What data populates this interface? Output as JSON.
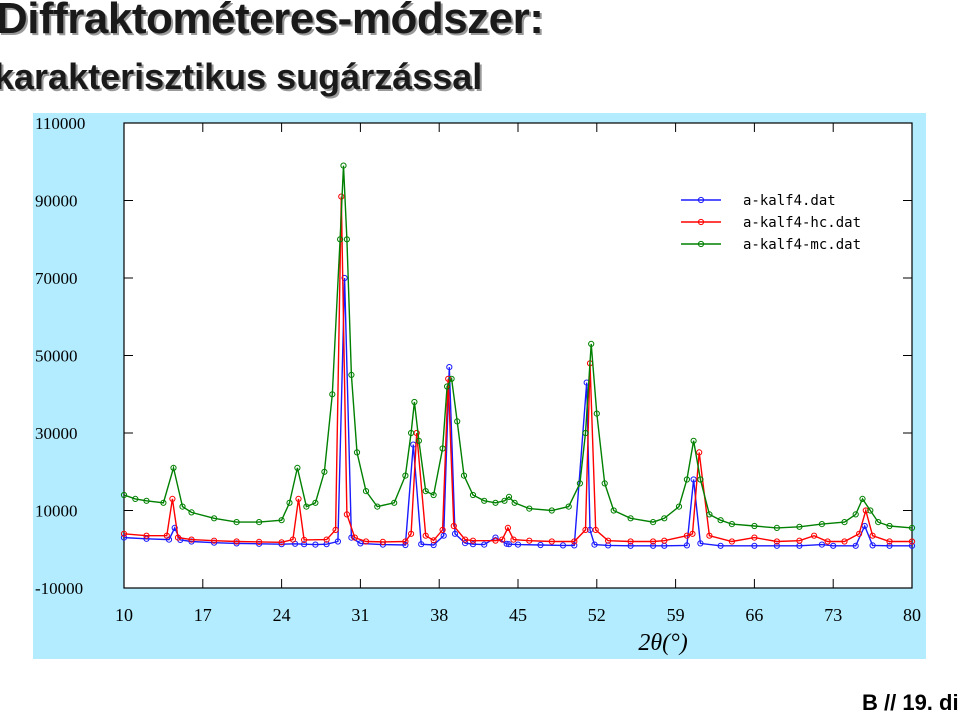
{
  "slide": {
    "title": "Diffraktométeres-módszer:",
    "subtitle": "karakterisztikus sugárzással",
    "footer": "B // 19. di"
  },
  "chart_data": {
    "type": "line",
    "title": "",
    "xlabel": "2θ(°)",
    "ylabel": "",
    "xlim": [
      10,
      80
    ],
    "ylim": [
      -10000,
      110000
    ],
    "xticks": [
      10,
      17,
      24,
      31,
      38,
      45,
      52,
      59,
      66,
      73,
      80
    ],
    "xtick_labels": [
      "10",
      "17",
      "24",
      "31",
      "38",
      "45",
      "52",
      "59",
      "66",
      "73",
      "80"
    ],
    "yticks": [
      -10000,
      10000,
      30000,
      50000,
      70000,
      90000,
      110000
    ],
    "ytick_labels": [
      "-10000",
      "10000",
      "30000",
      "50000",
      "70000",
      "90000",
      "110000"
    ],
    "grid": false,
    "legend_position": "top-right",
    "marker": "circle",
    "series": [
      {
        "name": "a-kalf4.dat",
        "color": "#1a1aff",
        "x": [
          10,
          12,
          14,
          14.5,
          15,
          16,
          18,
          20,
          22,
          24,
          25.2,
          26,
          27,
          28,
          29,
          29.6,
          30.2,
          31,
          33,
          35,
          35.7,
          36.4,
          37.5,
          38.4,
          38.9,
          39.4,
          40.3,
          41,
          42,
          43,
          44,
          44.2,
          45,
          47,
          49,
          50,
          51.1,
          51.4,
          51.8,
          53,
          55,
          57,
          58,
          60,
          60.6,
          61.2,
          63,
          66,
          68,
          70,
          72,
          73,
          75,
          75.8,
          76.5,
          78,
          80
        ],
        "y": [
          3000,
          2700,
          2500,
          5500,
          2400,
          2000,
          1700,
          1500,
          1400,
          1300,
          1400,
          1300,
          1200,
          1300,
          2000,
          70000,
          3000,
          1500,
          1200,
          1100,
          27000,
          1300,
          1100,
          3500,
          47000,
          4000,
          1600,
          1300,
          1200,
          3000,
          1400,
          1300,
          1200,
          1100,
          1000,
          1000,
          43000,
          5000,
          1200,
          1000,
          900,
          900,
          900,
          1000,
          18000,
          1500,
          900,
          900,
          900,
          900,
          1200,
          900,
          900,
          6000,
          1000,
          900,
          900
        ]
      },
      {
        "name": "a-kalf4-hc.dat",
        "color": "#ff0000",
        "x": [
          10,
          12,
          13.8,
          14.3,
          14.8,
          16,
          18,
          20,
          22,
          24,
          25,
          25.5,
          26,
          28,
          28.8,
          29.3,
          29.8,
          30.5,
          31.5,
          33,
          35,
          35.5,
          36,
          36.8,
          37.5,
          38.3,
          38.8,
          39.3,
          40.3,
          41,
          43,
          43.6,
          44.1,
          44.6,
          46,
          48,
          50,
          51,
          51.4,
          51.9,
          53,
          55,
          57,
          58,
          60,
          60.5,
          61.1,
          62,
          64,
          66,
          68,
          70,
          71.3,
          72.5,
          74,
          75.3,
          75.9,
          76.5,
          78,
          80
        ],
        "y": [
          4000,
          3500,
          3500,
          13000,
          3000,
          2500,
          2200,
          2000,
          1900,
          1800,
          2500,
          13000,
          2400,
          2500,
          5000,
          91000,
          9000,
          3000,
          2000,
          1900,
          2000,
          4000,
          30000,
          3500,
          2300,
          5000,
          44000,
          6000,
          2500,
          2200,
          2200,
          2500,
          5500,
          2500,
          2200,
          2000,
          2000,
          5000,
          48000,
          5000,
          2200,
          2000,
          2000,
          2200,
          3500,
          4000,
          25000,
          3500,
          2000,
          3000,
          2000,
          2200,
          3500,
          2000,
          2000,
          4000,
          10000,
          3500,
          2000,
          2000
        ]
      },
      {
        "name": "a-kalf4-mc.dat",
        "color": "#008000",
        "x": [
          10,
          11,
          12,
          13.5,
          14.4,
          15.2,
          16,
          18,
          20,
          22,
          24,
          24.7,
          25.4,
          26.2,
          27,
          27.8,
          28.5,
          29.2,
          29.5,
          29.8,
          30.2,
          30.7,
          31.5,
          32.5,
          34,
          35,
          35.5,
          35.8,
          36.2,
          36.8,
          37.5,
          38.3,
          38.7,
          39.1,
          39.6,
          40.2,
          41,
          42,
          43,
          43.8,
          44.2,
          44.7,
          46,
          48,
          49.5,
          50.5,
          51,
          51.5,
          52,
          52.7,
          53.5,
          55,
          57,
          58,
          59.3,
          60,
          60.6,
          61.2,
          62,
          63,
          64,
          66,
          68,
          70,
          72,
          74,
          75,
          75.6,
          76.3,
          77,
          78,
          80
        ],
        "y": [
          14000,
          13000,
          12500,
          12000,
          21000,
          11000,
          9500,
          8000,
          7000,
          7000,
          7500,
          12000,
          21000,
          11000,
          12000,
          20000,
          40000,
          80000,
          99000,
          80000,
          45000,
          25000,
          15000,
          11000,
          12000,
          19000,
          30000,
          38000,
          28000,
          15000,
          14000,
          26000,
          42000,
          44000,
          33000,
          19000,
          14000,
          12500,
          12000,
          12500,
          13500,
          12000,
          10500,
          10000,
          11000,
          17000,
          30000,
          53000,
          35000,
          17000,
          10000,
          8000,
          7000,
          8000,
          11000,
          18000,
          28000,
          18000,
          9000,
          7500,
          6500,
          6000,
          5500,
          5800,
          6500,
          7000,
          9000,
          13000,
          10000,
          7000,
          6000,
          5500
        ]
      }
    ]
  }
}
